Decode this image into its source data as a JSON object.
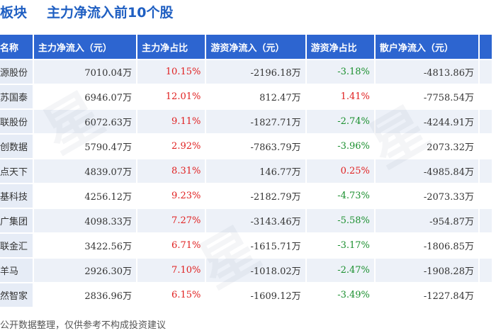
{
  "title": {
    "part1": "板块",
    "part2": "主力净流入前10个股"
  },
  "columns": [
    "名称",
    "主力净流入（元）",
    "主力净占比",
    "游资净流入（元）",
    "游资净占比",
    "散户净流入（元）"
  ],
  "rows": [
    [
      "源股份",
      "7010.04万",
      "10.15%",
      "-2196.18万",
      "-3.18%",
      "-4813.86万"
    ],
    [
      "苏国泰",
      "6946.07万",
      "12.01%",
      "812.47万",
      "1.41%",
      "-7758.54万"
    ],
    [
      "联股份",
      "6072.63万",
      "9.11%",
      "-1827.71万",
      "-2.74%",
      "-4244.91万"
    ],
    [
      "创数据",
      "5790.47万",
      "2.92%",
      "-7863.79万",
      "-3.96%",
      "2073.32万"
    ],
    [
      "点天下",
      "4839.07万",
      "8.31%",
      "146.77万",
      "0.25%",
      "-4985.84万"
    ],
    [
      "基科技",
      "4256.12万",
      "9.23%",
      "-2182.79万",
      "-4.73%",
      "-2073.33万"
    ],
    [
      "广集团",
      "4098.33万",
      "7.27%",
      "-3143.46万",
      "-5.58%",
      "-954.87万"
    ],
    [
      "联金汇",
      "3422.56万",
      "6.71%",
      "-1615.71万",
      "-3.17%",
      "-1806.85万"
    ],
    [
      "羊马",
      "2926.30万",
      "7.10%",
      "-1018.02万",
      "-2.47%",
      "-1908.28万"
    ],
    [
      "然智家",
      "2836.96万",
      "6.15%",
      "-1609.12万",
      "-3.49%",
      "-1227.84万"
    ]
  ],
  "footer": "公开数据整理，仅供参考不构成投资建议",
  "colors": {
    "header_bg": "#2d65d0",
    "title": "#1f5fc2",
    "positive": "#e02020",
    "negative": "#1a8f2e",
    "row_alt": "#edf1f8"
  }
}
